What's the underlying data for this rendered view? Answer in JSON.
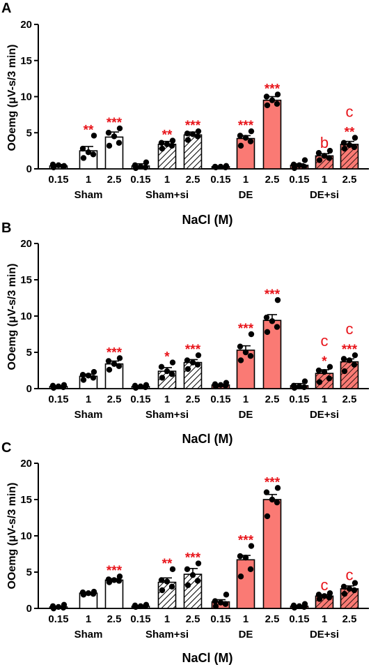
{
  "colors": {
    "dark_bar": "#fa7a74",
    "light_bar": "#ffffff",
    "sig": "#e8151b",
    "axis": "#000000"
  },
  "chart_data": [
    {
      "type": "bar",
      "panel": "A",
      "ylabel": "OOemg (μV-s/3 min)",
      "xlabel": "NaCl (M)",
      "ylim": [
        0,
        20
      ],
      "yticks": [
        0,
        5,
        10,
        15,
        20
      ],
      "groups": [
        "Sham",
        "Sham+si",
        "DE",
        "DE+si"
      ],
      "categories": [
        "0.15",
        "1",
        "2.5",
        "0.15",
        "1",
        "2.5",
        "0.15",
        "1",
        "2.5",
        "0.15",
        "1",
        "2.5"
      ],
      "values": [
        0.4,
        2.5,
        4.4,
        0.4,
        3.4,
        4.7,
        0.3,
        4.2,
        9.5,
        0.5,
        1.8,
        3.4
      ],
      "errors": [
        0.2,
        0.6,
        0.7,
        0.3,
        0.4,
        0.4,
        0.1,
        0.4,
        0.5,
        0.2,
        0.3,
        0.4
      ],
      "points": [
        [
          0.2,
          0.3,
          0.5,
          0.6,
          0.4
        ],
        [
          1.5,
          2.0,
          2.3,
          2.8,
          4.6
        ],
        [
          3.2,
          3.6,
          4.5,
          5.0,
          5.6
        ],
        [
          0.1,
          0.2,
          0.3,
          0.5,
          0.9
        ],
        [
          2.8,
          3.2,
          3.4,
          3.6,
          3.9
        ],
        [
          4.0,
          4.5,
          4.8,
          4.9,
          5.2
        ],
        [
          0.2,
          0.2,
          0.3,
          0.3,
          0.4
        ],
        [
          3.2,
          3.8,
          4.3,
          4.6,
          5.2
        ],
        [
          8.8,
          9.0,
          9.5,
          10.0,
          10.3
        ],
        [
          0.1,
          0.3,
          0.5,
          0.6,
          1.2
        ],
        [
          1.2,
          1.5,
          1.8,
          2.2,
          2.5
        ],
        [
          2.8,
          3.0,
          3.3,
          3.6,
          4.3
        ]
      ],
      "fills": [
        "open",
        "open",
        "open",
        "hatch",
        "hatch",
        "hatch",
        "solid",
        "solid",
        "solid",
        "solid-hatch",
        "solid-hatch",
        "solid-hatch"
      ],
      "annotations": [
        "",
        "**",
        "***",
        "",
        "**",
        "***",
        "",
        "***",
        "***",
        "",
        "",
        "**"
      ],
      "letters": [
        "",
        "",
        "",
        "",
        "",
        "",
        "",
        "",
        "",
        "",
        "b",
        "c"
      ]
    },
    {
      "type": "bar",
      "panel": "B",
      "ylabel": "OOemg (μV-s/3 min)",
      "xlabel": "NaCl (M)",
      "ylim": [
        0,
        20
      ],
      "yticks": [
        0,
        5,
        10,
        15,
        20
      ],
      "groups": [
        "Sham",
        "Sham+si",
        "DE",
        "DE+si"
      ],
      "categories": [
        "0.15",
        "1",
        "2.5",
        "0.15",
        "1",
        "2.5",
        "0.15",
        "1",
        "2.5",
        "0.15",
        "1",
        "2.5"
      ],
      "values": [
        0.3,
        1.7,
        3.4,
        0.3,
        2.4,
        3.6,
        0.5,
        5.3,
        9.4,
        0.4,
        2.1,
        3.7
      ],
      "errors": [
        0.1,
        0.3,
        0.4,
        0.1,
        0.5,
        0.4,
        0.1,
        0.6,
        0.8,
        0.3,
        0.5,
        0.4
      ],
      "points": [
        [
          0.1,
          0.2,
          0.3,
          0.4,
          0.5
        ],
        [
          1.2,
          1.5,
          1.8,
          1.9,
          2.3
        ],
        [
          2.6,
          3.1,
          3.4,
          3.8,
          4.2
        ],
        [
          0.1,
          0.2,
          0.3,
          0.4,
          0.5
        ],
        [
          1.5,
          2.0,
          2.4,
          3.0,
          3.6
        ],
        [
          2.7,
          3.3,
          3.6,
          3.9,
          4.6
        ],
        [
          0.3,
          0.4,
          0.5,
          0.6,
          0.8
        ],
        [
          3.9,
          4.5,
          5.0,
          5.8,
          7.5
        ],
        [
          7.8,
          8.5,
          9.3,
          9.8,
          12.2
        ],
        [
          0.1,
          0.2,
          0.3,
          0.4,
          1.0
        ],
        [
          0.9,
          1.4,
          2.3,
          2.5,
          3.0
        ],
        [
          2.4,
          3.3,
          3.9,
          4.1,
          4.6
        ]
      ],
      "fills": [
        "open",
        "open",
        "open",
        "hatch",
        "hatch",
        "hatch",
        "solid",
        "solid",
        "solid",
        "solid-hatch",
        "solid-hatch",
        "solid-hatch"
      ],
      "annotations": [
        "",
        "",
        "***",
        "",
        "*",
        "***",
        "",
        "***",
        "***",
        "",
        "*",
        "***"
      ],
      "letters": [
        "",
        "",
        "",
        "",
        "",
        "",
        "",
        "",
        "",
        "",
        "c",
        "c"
      ]
    },
    {
      "type": "bar",
      "panel": "C",
      "ylabel": "OOemg (μV-s/3 min)",
      "xlabel": "NaCl (M)",
      "ylim": [
        0,
        20
      ],
      "yticks": [
        0,
        5,
        10,
        15,
        20
      ],
      "groups": [
        "Sham",
        "Sham+si",
        "DE",
        "DE+si"
      ],
      "categories": [
        "0.15",
        "1",
        "2.5",
        "0.15",
        "1",
        "2.5",
        "0.15",
        "1",
        "2.5",
        "0.15",
        "1",
        "2.5"
      ],
      "values": [
        0.2,
        2.1,
        3.9,
        0.3,
        3.6,
        4.7,
        0.9,
        6.7,
        15.0,
        0.3,
        1.7,
        2.7
      ],
      "errors": [
        0.1,
        0.1,
        0.2,
        0.1,
        0.6,
        0.8,
        0.3,
        0.6,
        0.7,
        0.1,
        0.2,
        0.4
      ],
      "points": [
        [
          0.0,
          0.1,
          0.2,
          0.3,
          0.5
        ],
        [
          1.9,
          2.0,
          2.1,
          2.2,
          2.3
        ],
        [
          3.6,
          3.8,
          3.9,
          4.0,
          4.4
        ],
        [
          0.2,
          0.3,
          0.3,
          0.4,
          0.5
        ],
        [
          2.5,
          3.0,
          3.7,
          3.9,
          5.4
        ],
        [
          3.2,
          3.8,
          4.6,
          5.4,
          6.2
        ],
        [
          0.3,
          0.6,
          0.8,
          1.0,
          1.9
        ],
        [
          4.4,
          5.4,
          7.0,
          7.2,
          8.6
        ],
        [
          12.7,
          14.6,
          15.0,
          16.0,
          16.6
        ],
        [
          0.1,
          0.2,
          0.3,
          0.4,
          0.6
        ],
        [
          1.3,
          1.5,
          1.7,
          1.9,
          2.1
        ],
        [
          2.0,
          2.5,
          2.7,
          3.0,
          3.5
        ]
      ],
      "fills": [
        "open",
        "open",
        "open",
        "hatch",
        "hatch",
        "hatch",
        "solid",
        "solid",
        "solid",
        "solid-hatch",
        "solid-hatch",
        "solid-hatch"
      ],
      "annotations": [
        "",
        "",
        "***",
        "",
        "**",
        "***",
        "",
        "***",
        "***",
        "",
        "",
        ""
      ],
      "letters": [
        "",
        "",
        "",
        "",
        "",
        "",
        "",
        "",
        "",
        "",
        "c",
        "c"
      ]
    }
  ]
}
